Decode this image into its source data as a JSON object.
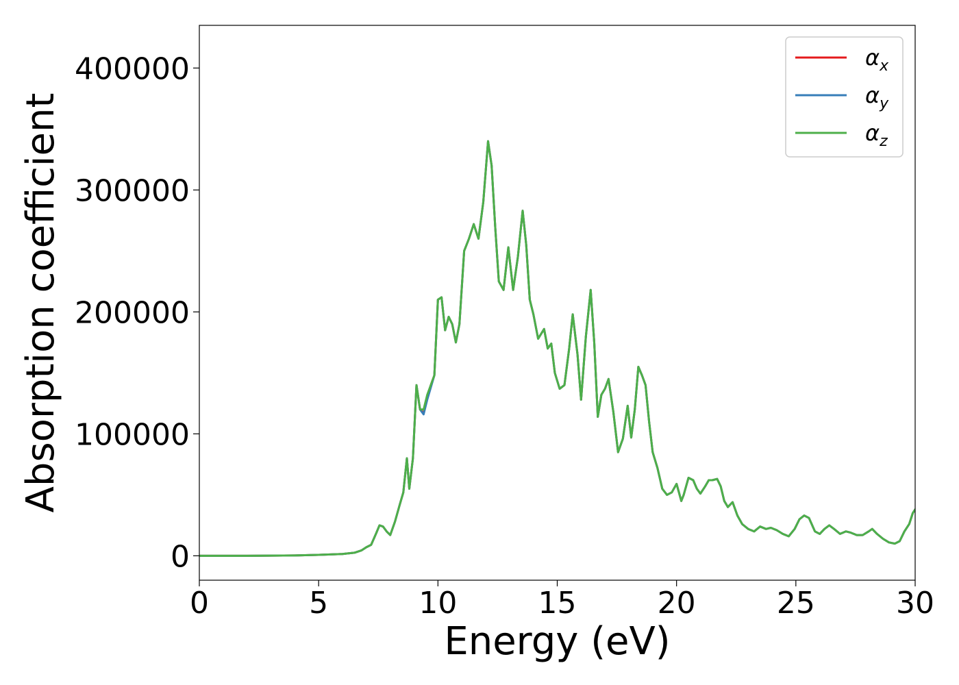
{
  "chart_data": {
    "type": "line",
    "title": "",
    "xlabel": "Energy (eV)",
    "ylabel": "Absorption coefficient",
    "xlim": [
      0,
      30
    ],
    "ylim": [
      -20000,
      435000
    ],
    "xticks": [
      0,
      5,
      10,
      15,
      20,
      25,
      30
    ],
    "xtick_labels": [
      "0",
      "5",
      "10",
      "15",
      "20",
      "25",
      "30"
    ],
    "yticks": [
      0,
      100000,
      200000,
      300000,
      400000
    ],
    "ytick_labels": [
      "0",
      "100000",
      "200000",
      "300000",
      "400000"
    ],
    "grid": false,
    "legend_position": "top-right",
    "x": [
      0,
      2,
      4,
      5,
      6,
      6.5,
      6.8,
      7.0,
      7.2,
      7.4,
      7.55,
      7.7,
      7.85,
      8.0,
      8.2,
      8.4,
      8.55,
      8.7,
      8.8,
      8.95,
      9.1,
      9.25,
      9.4,
      9.55,
      9.7,
      9.85,
      10.0,
      10.15,
      10.3,
      10.45,
      10.6,
      10.75,
      10.9,
      11.1,
      11.3,
      11.5,
      11.7,
      11.9,
      12.1,
      12.25,
      12.4,
      12.55,
      12.75,
      12.95,
      13.15,
      13.35,
      13.55,
      13.7,
      13.85,
      14.0,
      14.2,
      14.45,
      14.6,
      14.75,
      14.9,
      15.1,
      15.3,
      15.5,
      15.65,
      15.85,
      16.0,
      16.2,
      16.4,
      16.55,
      16.7,
      16.85,
      17.0,
      17.15,
      17.35,
      17.55,
      17.75,
      17.95,
      18.1,
      18.25,
      18.4,
      18.55,
      18.7,
      18.85,
      19.0,
      19.2,
      19.4,
      19.6,
      19.8,
      20.0,
      20.2,
      20.3,
      20.5,
      20.7,
      20.85,
      21.0,
      21.2,
      21.35,
      21.5,
      21.7,
      21.85,
      22.0,
      22.15,
      22.35,
      22.55,
      22.75,
      23.0,
      23.25,
      23.5,
      23.75,
      23.95,
      24.2,
      24.45,
      24.7,
      24.95,
      25.15,
      25.35,
      25.55,
      25.8,
      26.0,
      26.2,
      26.4,
      26.6,
      26.85,
      27.1,
      27.3,
      27.55,
      27.8,
      28.05,
      28.2,
      28.4,
      28.65,
      28.9,
      29.15,
      29.35,
      29.55,
      29.75,
      29.9,
      30.0
    ],
    "series": [
      {
        "name": "α_x",
        "label_main": "α",
        "label_sub": "x",
        "color": "#e41a1c",
        "values": [
          0,
          0,
          300,
          800,
          1500,
          2500,
          4500,
          7000,
          9000,
          18000,
          25000,
          24000,
          20000,
          17000,
          28000,
          42000,
          52000,
          80000,
          55000,
          80000,
          140000,
          120000,
          117000,
          130000,
          140000,
          148000,
          210000,
          212000,
          185000,
          196000,
          190000,
          175000,
          190000,
          250000,
          260000,
          272000,
          260000,
          290000,
          340000,
          320000,
          270000,
          225000,
          218000,
          253000,
          218000,
          245000,
          283000,
          255000,
          210000,
          198000,
          178000,
          186000,
          170000,
          174000,
          150000,
          137000,
          140000,
          170000,
          198000,
          165000,
          128000,
          180000,
          218000,
          175000,
          114000,
          132000,
          137000,
          145000,
          118000,
          85000,
          96000,
          123000,
          97000,
          120000,
          155000,
          148000,
          140000,
          110000,
          85000,
          72000,
          55000,
          50000,
          52000,
          59000,
          45000,
          50000,
          64000,
          62000,
          55000,
          51000,
          57000,
          62000,
          62000,
          63000,
          57000,
          45000,
          40000,
          44000,
          33000,
          26000,
          22000,
          20000,
          24000,
          22000,
          23000,
          21000,
          18000,
          16000,
          22000,
          30000,
          33000,
          31000,
          20000,
          18000,
          22000,
          25000,
          22000,
          18000,
          20000,
          19000,
          17000,
          17000,
          20000,
          22000,
          18000,
          14000,
          11000,
          10000,
          12000,
          20000,
          26000,
          35000,
          38000
        ]
      },
      {
        "name": "α_y",
        "label_main": "α",
        "label_sub": "y",
        "color": "#377eb8",
        "values": [
          0,
          0,
          300,
          800,
          1500,
          2500,
          4500,
          7000,
          9000,
          18000,
          25000,
          24000,
          20000,
          17000,
          28000,
          42000,
          52000,
          80000,
          55000,
          80000,
          140000,
          120000,
          116000,
          128000,
          138000,
          148000,
          210000,
          212000,
          185000,
          196000,
          190000,
          175000,
          190000,
          250000,
          260000,
          272000,
          260000,
          290000,
          340000,
          320000,
          270000,
          225000,
          218000,
          253000,
          218000,
          245000,
          283000,
          255000,
          210000,
          198000,
          178000,
          186000,
          170000,
          174000,
          150000,
          137000,
          140000,
          170000,
          198000,
          165000,
          128000,
          180000,
          218000,
          175000,
          114000,
          132000,
          137000,
          145000,
          118000,
          85000,
          96000,
          123000,
          97000,
          120000,
          155000,
          148000,
          140000,
          110000,
          85000,
          72000,
          55000,
          50000,
          52000,
          59000,
          45000,
          50000,
          64000,
          62000,
          55000,
          51000,
          57000,
          62000,
          62000,
          63000,
          57000,
          45000,
          40000,
          44000,
          33000,
          26000,
          22000,
          20000,
          24000,
          22000,
          23000,
          21000,
          18000,
          16000,
          22000,
          30000,
          33000,
          31000,
          20000,
          18000,
          22000,
          25000,
          22000,
          18000,
          20000,
          19000,
          17000,
          17000,
          20000,
          22000,
          18000,
          14000,
          11000,
          10000,
          12000,
          20000,
          26000,
          35000,
          38000
        ]
      },
      {
        "name": "α_z",
        "label_main": "α",
        "label_sub": "z",
        "color": "#4daf4a",
        "values": [
          0,
          0,
          300,
          800,
          1500,
          2500,
          4500,
          7000,
          9000,
          18000,
          25000,
          24000,
          20000,
          17000,
          28000,
          42000,
          52000,
          80000,
          55000,
          80000,
          140000,
          120000,
          120000,
          132000,
          140000,
          148000,
          210000,
          212000,
          185000,
          196000,
          190000,
          175000,
          190000,
          250000,
          260000,
          272000,
          260000,
          290000,
          340000,
          320000,
          270000,
          225000,
          218000,
          253000,
          218000,
          245000,
          283000,
          255000,
          210000,
          198000,
          178000,
          186000,
          170000,
          174000,
          150000,
          137000,
          140000,
          170000,
          198000,
          165000,
          128000,
          180000,
          218000,
          175000,
          114000,
          132000,
          137000,
          145000,
          118000,
          85000,
          96000,
          123000,
          97000,
          120000,
          155000,
          148000,
          140000,
          110000,
          85000,
          72000,
          55000,
          50000,
          52000,
          59000,
          45000,
          50000,
          64000,
          62000,
          55000,
          51000,
          57000,
          62000,
          62000,
          63000,
          57000,
          45000,
          40000,
          44000,
          33000,
          26000,
          22000,
          20000,
          24000,
          22000,
          23000,
          21000,
          18000,
          16000,
          22000,
          30000,
          33000,
          31000,
          20000,
          18000,
          22000,
          25000,
          22000,
          18000,
          20000,
          19000,
          17000,
          17000,
          20000,
          22000,
          18000,
          14000,
          11000,
          10000,
          12000,
          20000,
          26000,
          35000,
          38000
        ]
      }
    ]
  }
}
